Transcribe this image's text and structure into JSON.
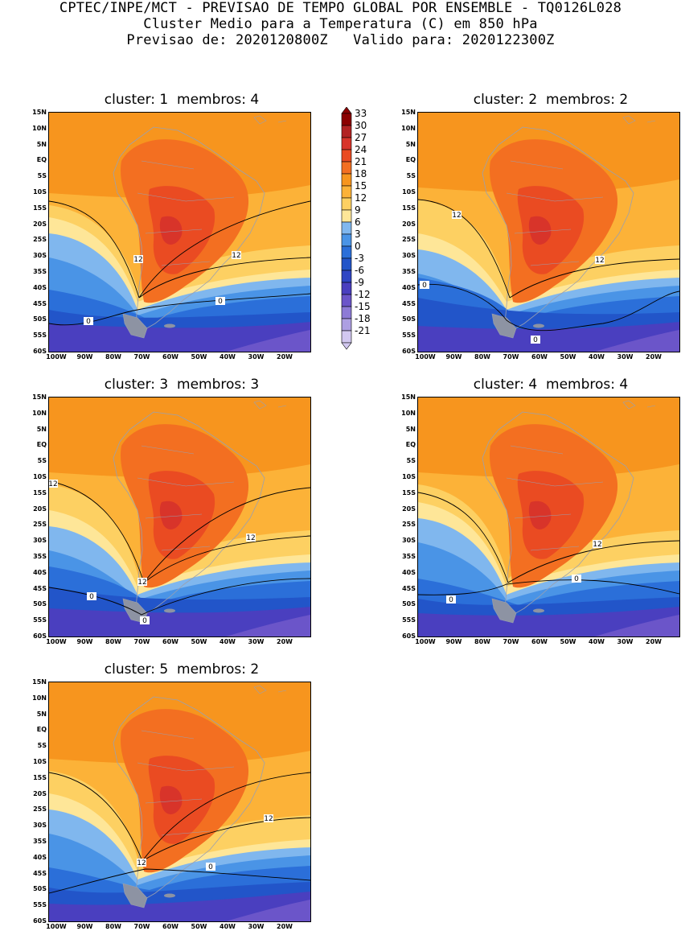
{
  "header": {
    "line1": "CPTEC/INPE/MCT - PREVISAO DE TEMPO GLOBAL POR ENSEMBLE - TQ0126L028",
    "line2": "Cluster Medio para a Temperatura (C) em 850 hPa",
    "line3": "Previsao de: 2020120800Z   Valido para: 2020122300Z"
  },
  "axes": {
    "lat_labels": [
      "15N",
      "10N",
      "5N",
      "EQ",
      "5S",
      "10S",
      "15S",
      "20S",
      "25S",
      "30S",
      "35S",
      "40S",
      "45S",
      "50S",
      "55S",
      "60S"
    ],
    "lon_labels": [
      "100W",
      "90W",
      "80W",
      "70W",
      "60W",
      "50W",
      "40W",
      "30W",
      "20W"
    ]
  },
  "legend": {
    "levels": [
      "33",
      "30",
      "27",
      "24",
      "21",
      "18",
      "15",
      "12",
      "9",
      "6",
      "3",
      "0",
      "-3",
      "-6",
      "-9",
      "-12",
      "-15",
      "-18",
      "-21"
    ],
    "colors": [
      "#8b0000",
      "#b22222",
      "#d8342a",
      "#ea4b22",
      "#f36f21",
      "#f7951e",
      "#fcb238",
      "#fdd062",
      "#fee698",
      "#80b7ee",
      "#4a94e6",
      "#2b6fd9",
      "#2255c9",
      "#2f46c4",
      "#4a3fbf",
      "#6b55c9",
      "#8d7ad6",
      "#ad9fe2",
      "#d2c8f0"
    ]
  },
  "panels": [
    {
      "title": "cluster: 1  membros: 4",
      "contour_labels": [
        "12",
        "12",
        "0",
        "0"
      ]
    },
    {
      "title": "cluster: 2  membros: 2",
      "contour_labels": [
        "12",
        "12",
        "0",
        "0"
      ]
    },
    {
      "title": "cluster: 3  membros: 3",
      "contour_labels": [
        "12",
        "12",
        "12",
        "0",
        "0"
      ]
    },
    {
      "title": "cluster: 4  membros: 4",
      "contour_labels": [
        "12",
        "0",
        "0"
      ]
    },
    {
      "title": "cluster: 5  membros: 2",
      "contour_labels": [
        "12",
        "12",
        "0"
      ]
    }
  ]
}
